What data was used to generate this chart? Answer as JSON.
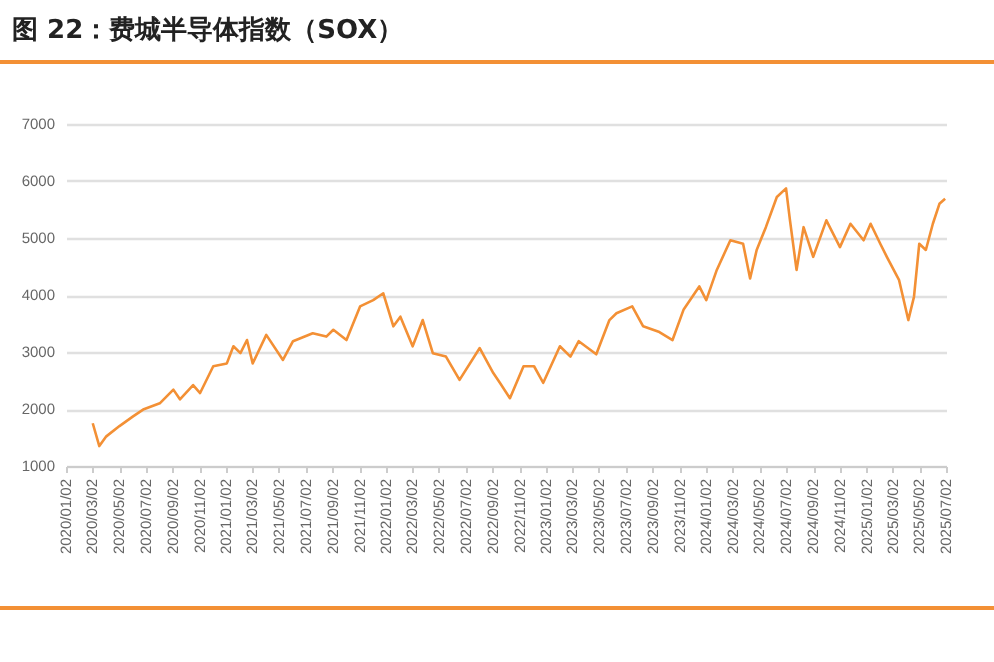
{
  "chart_data": {
    "type": "line",
    "title": "图 22：费城半导体指数（SOX）",
    "x": [
      "2020-03-03",
      "2020-03-18",
      "2020-04-03",
      "2020-05-03",
      "2020-06-03",
      "2020-06-26",
      "2020-08-03",
      "2020-09-03",
      "2020-09-18",
      "2020-10-18",
      "2020-11-03",
      "2020-12-03",
      "2021-01-03",
      "2021-01-18",
      "2021-02-03",
      "2021-02-18",
      "2021-03-03",
      "2021-04-03",
      "2021-05-11",
      "2021-06-03",
      "2021-07-18",
      "2021-08-18",
      "2021-09-03",
      "2021-10-03",
      "2021-11-03",
      "2021-12-03",
      "2021-12-26",
      "2022-01-18",
      "2022-02-03",
      "2022-03-03",
      "2022-03-26",
      "2022-04-18",
      "2022-05-18",
      "2022-06-18",
      "2022-08-03",
      "2022-09-03",
      "2022-09-18",
      "2022-10-11",
      "2022-11-11",
      "2022-12-05",
      "2022-12-26",
      "2023-02-02",
      "2023-02-26",
      "2023-03-17",
      "2023-04-26",
      "2023-05-26",
      "2023-06-11",
      "2023-07-17",
      "2023-08-11",
      "2023-09-17",
      "2023-10-17",
      "2023-11-11",
      "2023-12-17",
      "2024-01-02",
      "2024-01-26",
      "2024-02-26",
      "2024-03-26",
      "2024-04-11",
      "2024-04-26",
      "2024-05-17",
      "2024-06-11",
      "2024-07-02",
      "2024-07-11",
      "2024-07-26",
      "2024-08-11",
      "2024-09-02",
      "2024-10-02",
      "2024-11-02",
      "2024-11-26",
      "2024-12-26",
      "2025-01-11",
      "2025-02-02",
      "2025-02-17",
      "2025-03-17",
      "2025-04-07",
      "2025-04-20",
      "2025-05-02",
      "2025-05-17",
      "2025-06-02",
      "2025-06-17",
      "2025-06-30"
    ],
    "series": [
      {
        "color": "#f39035",
        "values": [
          1750,
          1350,
          1520,
          1700,
          1870,
          1990,
          2100,
          2340,
          2170,
          2420,
          2280,
          2750,
          2800,
          3100,
          2980,
          3210,
          2800,
          3300,
          2860,
          3190,
          3330,
          3270,
          3390,
          3210,
          3800,
          3910,
          4030,
          3450,
          3620,
          3100,
          3560,
          2980,
          2920,
          2510,
          3070,
          2630,
          2460,
          2190,
          2750,
          2750,
          2460,
          3100,
          2920,
          3190,
          2960,
          3560,
          3680,
          3800,
          3450,
          3350,
          3210,
          3740,
          4150,
          3910,
          4440,
          4960,
          4900,
          4290,
          4790,
          5190,
          5720,
          5870,
          5310,
          4440,
          5190,
          4670,
          5310,
          4840,
          5250,
          4960,
          5250,
          4900,
          4670,
          4260,
          3560,
          3970,
          4900,
          4790,
          5250,
          5600,
          5690
        ]
      }
    ],
    "xlim": [
      "2020-01-02",
      "2025-07-02"
    ],
    "xticks": [
      {
        "value": "2020-01-02",
        "label": "2020/01/02"
      },
      {
        "value": "2020-03-02",
        "label": "2020/03/02"
      },
      {
        "value": "2020-05-02",
        "label": "2020/05/02"
      },
      {
        "value": "2020-07-02",
        "label": "2020/07/02"
      },
      {
        "value": "2020-09-02",
        "label": "2020/09/02"
      },
      {
        "value": "2020-11-02",
        "label": "2020/11/02"
      },
      {
        "value": "2021-01-02",
        "label": "2021/01/02"
      },
      {
        "value": "2021-03-02",
        "label": "2021/03/02"
      },
      {
        "value": "2021-05-02",
        "label": "2021/05/02"
      },
      {
        "value": "2021-07-02",
        "label": "2021/07/02"
      },
      {
        "value": "2021-09-02",
        "label": "2021/09/02"
      },
      {
        "value": "2021-11-02",
        "label": "2021/11/02"
      },
      {
        "value": "2022-01-02",
        "label": "2022/01/02"
      },
      {
        "value": "2022-03-02",
        "label": "2022/03/02"
      },
      {
        "value": "2022-05-02",
        "label": "2022/05/02"
      },
      {
        "value": "2022-07-02",
        "label": "2022/07/02"
      },
      {
        "value": "2022-09-02",
        "label": "2022/09/02"
      },
      {
        "value": "2022-11-02",
        "label": "2022/11/02"
      },
      {
        "value": "2023-01-02",
        "label": "2023/01/02"
      },
      {
        "value": "2023-03-02",
        "label": "2023/03/02"
      },
      {
        "value": "2023-05-02",
        "label": "2023/05/02"
      },
      {
        "value": "2023-07-02",
        "label": "2023/07/02"
      },
      {
        "value": "2023-09-02",
        "label": "2023/09/02"
      },
      {
        "value": "2023-11-02",
        "label": "2023/11/02"
      },
      {
        "value": "2024-01-02",
        "label": "2024/01/02"
      },
      {
        "value": "2024-03-02",
        "label": "2024/03/02"
      },
      {
        "value": "2024-05-02",
        "label": "2024/05/02"
      },
      {
        "value": "2024-07-02",
        "label": "2024/07/02"
      },
      {
        "value": "2024-09-02",
        "label": "2024/09/02"
      },
      {
        "value": "2024-11-02",
        "label": "2024/11/02"
      },
      {
        "value": "2025-01-02",
        "label": "2025/01/02"
      },
      {
        "value": "2025-03-02",
        "label": "2025/03/02"
      },
      {
        "value": "2025-05-02",
        "label": "2025/05/02"
      },
      {
        "value": "2025-07-02",
        "label": "2025/07/02"
      }
    ],
    "ylim": [
      1000,
      7000
    ],
    "yticks": [
      1000,
      2000,
      3000,
      4000,
      5000,
      6000,
      7000
    ],
    "grid": "y"
  }
}
